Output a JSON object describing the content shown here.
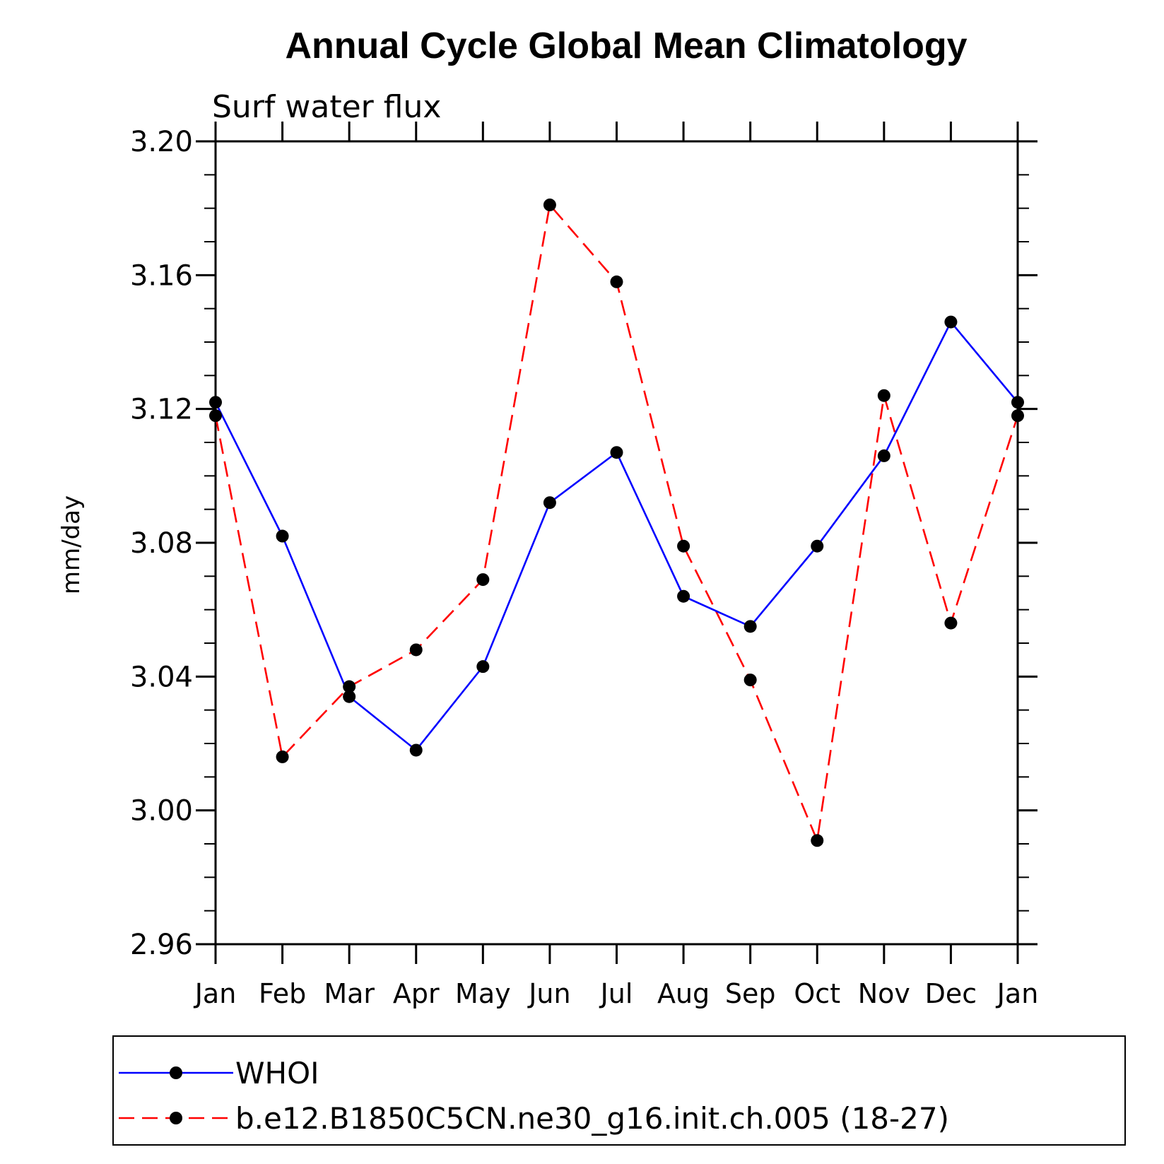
{
  "chart_data": {
    "type": "line",
    "title": "Annual Cycle Global Mean Climatology",
    "subtitle": "Surf water flux",
    "xlabel": "",
    "ylabel": "mm/day",
    "categories": [
      "Jan",
      "Feb",
      "Mar",
      "Apr",
      "May",
      "Jun",
      "Jul",
      "Aug",
      "Sep",
      "Oct",
      "Nov",
      "Dec",
      "Jan"
    ],
    "ylim": [
      2.96,
      3.2
    ],
    "yticks": [
      "2.96",
      "3.00",
      "3.04",
      "3.08",
      "3.12",
      "3.16",
      "3.20"
    ],
    "ytick_values": [
      2.96,
      3.0,
      3.04,
      3.08,
      3.12,
      3.16,
      3.2
    ],
    "grid": false,
    "legend_position": "bottom",
    "series": [
      {
        "name": "WHOI",
        "color": "#0000ff",
        "style": "solid",
        "marker": "filled-circle",
        "values": [
          3.122,
          3.082,
          3.034,
          3.018,
          3.043,
          3.092,
          3.107,
          3.064,
          3.055,
          3.079,
          3.106,
          3.146,
          3.122
        ]
      },
      {
        "name": "b.e12.B1850C5CN.ne30_g16.init.ch.005 (18-27)",
        "color": "#ff0000",
        "style": "dashed",
        "marker": "filled-circle",
        "values": [
          3.118,
          3.016,
          3.037,
          3.048,
          3.069,
          3.181,
          3.158,
          3.079,
          3.039,
          2.991,
          3.124,
          3.056,
          3.118
        ]
      }
    ]
  }
}
